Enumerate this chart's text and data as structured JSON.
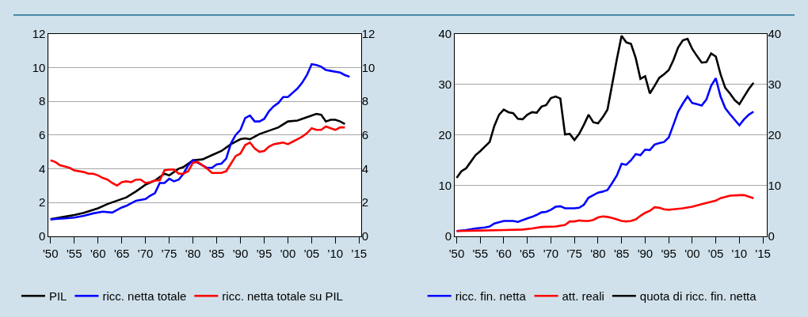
{
  "chart_data": [
    {
      "type": "line",
      "xlim": [
        1949.6,
        2015.4
      ],
      "xticks": [
        {
          "value": 1950,
          "label": "'50"
        },
        {
          "value": 1955,
          "label": "'55"
        },
        {
          "value": 1960,
          "label": "'60"
        },
        {
          "value": 1965,
          "label": "'65"
        },
        {
          "value": 1970,
          "label": "'70"
        },
        {
          "value": 1975,
          "label": "'75"
        },
        {
          "value": 1980,
          "label": "'80"
        },
        {
          "value": 1985,
          "label": "'85"
        },
        {
          "value": 1990,
          "label": "'90"
        },
        {
          "value": 1995,
          "label": "'95"
        },
        {
          "value": 2000,
          "label": "'00"
        },
        {
          "value": 2005,
          "label": "'05"
        },
        {
          "value": 2010,
          "label": "'10"
        },
        {
          "value": 2015,
          "label": "'15"
        }
      ],
      "ylim": [
        0,
        12
      ],
      "yticks": [
        0,
        2,
        4,
        6,
        8,
        10,
        12
      ],
      "y2lim": [
        0,
        12
      ],
      "y2ticks": [
        0,
        2,
        4,
        6,
        8,
        10,
        12
      ],
      "grid": "y",
      "legend": "bottom",
      "series": [
        {
          "name": "PIL",
          "color": "#000000",
          "x": [
            1950,
            1953,
            1955,
            1957,
            1960,
            1962,
            1964,
            1966,
            1968,
            1970,
            1972,
            1974,
            1975,
            1977,
            1978,
            1980,
            1982,
            1984,
            1986,
            1988,
            1990,
            1991,
            1992,
            1994,
            1996,
            1998,
            2000,
            2002,
            2004,
            2006,
            2007,
            2008,
            2009,
            2010,
            2011,
            2012
          ],
          "values": [
            1.0,
            1.15,
            1.25,
            1.38,
            1.65,
            1.9,
            2.1,
            2.3,
            2.65,
            3.05,
            3.3,
            3.7,
            3.6,
            4.0,
            4.1,
            4.5,
            4.55,
            4.8,
            5.05,
            5.45,
            5.75,
            5.8,
            5.75,
            6.05,
            6.25,
            6.45,
            6.8,
            6.85,
            7.05,
            7.25,
            7.2,
            6.8,
            6.9,
            6.9,
            6.8,
            6.65
          ]
        },
        {
          "name": "ricc. netta totale",
          "color": "#0000ff",
          "x": [
            1950,
            1953,
            1955,
            1957,
            1959,
            1961,
            1963,
            1965,
            1966,
            1968,
            1970,
            1971,
            1972,
            1973,
            1974,
            1975,
            1976,
            1977,
            1978,
            1979,
            1980,
            1981,
            1982,
            1983,
            1984,
            1985,
            1986,
            1987,
            1988,
            1989,
            1990,
            1991,
            1992,
            1993,
            1994,
            1995,
            1996,
            1997,
            1998,
            1999,
            2000,
            2001,
            2002,
            2003,
            2004,
            2005,
            2006,
            2007,
            2008,
            2009,
            2010,
            2011,
            2012,
            2013
          ],
          "values": [
            1.0,
            1.05,
            1.1,
            1.2,
            1.35,
            1.45,
            1.4,
            1.7,
            1.8,
            2.1,
            2.2,
            2.4,
            2.55,
            3.15,
            3.15,
            3.4,
            3.25,
            3.35,
            3.7,
            4.2,
            4.5,
            4.35,
            4.2,
            4.05,
            4.05,
            4.25,
            4.3,
            4.6,
            5.5,
            6.0,
            6.3,
            7.0,
            7.15,
            6.8,
            6.8,
            6.95,
            7.4,
            7.7,
            7.9,
            8.25,
            8.25,
            8.5,
            8.75,
            9.1,
            9.55,
            10.2,
            10.15,
            10.05,
            9.85,
            9.8,
            9.75,
            9.7,
            9.55,
            9.45
          ]
        },
        {
          "name": "ricc. netta totale su PIL",
          "color": "#ff0000",
          "x": [
            1950,
            1951,
            1952,
            1954,
            1955,
            1957,
            1958,
            1959,
            1960,
            1961,
            1962,
            1963,
            1964,
            1965,
            1966,
            1967,
            1968,
            1969,
            1970,
            1971,
            1972,
            1973,
            1974,
            1975,
            1976,
            1977,
            1978,
            1979,
            1980,
            1981,
            1982,
            1983,
            1984,
            1985,
            1986,
            1987,
            1988,
            1989,
            1990,
            1991,
            1992,
            1993,
            1994,
            1995,
            1996,
            1997,
            1998,
            1999,
            2000,
            2001,
            2002,
            2003,
            2004,
            2005,
            2006,
            2007,
            2008,
            2009,
            2010,
            2011,
            2012
          ],
          "values": [
            4.5,
            4.4,
            4.2,
            4.05,
            3.9,
            3.8,
            3.7,
            3.7,
            3.6,
            3.45,
            3.35,
            3.15,
            3.0,
            3.2,
            3.25,
            3.2,
            3.35,
            3.35,
            3.15,
            3.2,
            3.3,
            3.3,
            3.9,
            3.95,
            3.95,
            3.7,
            3.7,
            3.85,
            4.35,
            4.4,
            4.2,
            4.0,
            3.75,
            3.75,
            3.75,
            3.85,
            4.3,
            4.75,
            4.9,
            5.4,
            5.55,
            5.2,
            5.0,
            5.05,
            5.3,
            5.45,
            5.5,
            5.55,
            5.45,
            5.6,
            5.75,
            5.9,
            6.1,
            6.4,
            6.3,
            6.3,
            6.5,
            6.4,
            6.3,
            6.45,
            6.45
          ]
        }
      ]
    },
    {
      "type": "line",
      "xlim": [
        1949.6,
        2015.9
      ],
      "xticks": [
        {
          "value": 1950,
          "label": "'50"
        },
        {
          "value": 1955,
          "label": "'55"
        },
        {
          "value": 1960,
          "label": "'60"
        },
        {
          "value": 1965,
          "label": "'65"
        },
        {
          "value": 1970,
          "label": "'70"
        },
        {
          "value": 1975,
          "label": "'75"
        },
        {
          "value": 1980,
          "label": "'80"
        },
        {
          "value": 1985,
          "label": "'85"
        },
        {
          "value": 1990,
          "label": "'90"
        },
        {
          "value": 1995,
          "label": "'95"
        },
        {
          "value": 2000,
          "label": "'00"
        },
        {
          "value": 2005,
          "label": "'05"
        },
        {
          "value": 2010,
          "label": "'10"
        },
        {
          "value": 2015,
          "label": "'15"
        }
      ],
      "ylim": [
        0,
        40
      ],
      "yticks": [
        0,
        10,
        20,
        30,
        40
      ],
      "y2lim": [
        0,
        40
      ],
      "y2ticks": [
        0,
        10,
        20,
        30,
        40
      ],
      "grid": "y",
      "legend": "bottom",
      "series": [
        {
          "name": "ricc. fin. netta",
          "color": "#0000ff",
          "x": [
            1950,
            1952,
            1954,
            1956,
            1957,
            1958,
            1960,
            1962,
            1963,
            1965,
            1966,
            1967,
            1968,
            1969,
            1970,
            1971,
            1972,
            1973,
            1975,
            1976,
            1977,
            1978,
            1979,
            1980,
            1981,
            1982,
            1983,
            1984,
            1985,
            1986,
            1987,
            1988,
            1989,
            1990,
            1991,
            1992,
            1993,
            1994,
            1995,
            1996,
            1997,
            1998,
            1999,
            2000,
            2001,
            2002,
            2003,
            2004,
            2005,
            2006,
            2007,
            2008,
            2009,
            2010,
            2011,
            2012,
            2013
          ],
          "values": [
            1.0,
            1.2,
            1.5,
            1.7,
            1.9,
            2.5,
            3.0,
            3.0,
            2.8,
            3.5,
            3.8,
            4.2,
            4.7,
            4.8,
            5.2,
            5.8,
            5.9,
            5.5,
            5.5,
            5.6,
            6.2,
            7.6,
            8.1,
            8.6,
            8.8,
            9.1,
            10.5,
            12.0,
            14.3,
            14.1,
            15.0,
            16.2,
            16.0,
            17.1,
            17.0,
            18.1,
            18.4,
            18.6,
            19.5,
            22.0,
            24.6,
            26.2,
            27.6,
            26.3,
            26.1,
            25.8,
            27.0,
            29.7,
            31.2,
            27.6,
            25.3,
            24.1,
            23.0,
            21.9,
            23.1,
            24.0,
            24.6
          ]
        },
        {
          "name": "att. reali",
          "color": "#ff0000",
          "x": [
            1950,
            1955,
            1960,
            1964,
            1966,
            1968,
            1971,
            1973,
            1974,
            1975,
            1976,
            1977,
            1978,
            1979,
            1980,
            1981,
            1982,
            1983,
            1984,
            1985,
            1986,
            1987,
            1988,
            1989,
            1990,
            1991,
            1992,
            1993,
            1994,
            1995,
            1996,
            1998,
            2000,
            2002,
            2004,
            2005,
            2006,
            2008,
            2010,
            2011,
            2012,
            2013
          ],
          "values": [
            1.0,
            1.1,
            1.2,
            1.3,
            1.5,
            1.8,
            1.9,
            2.2,
            2.9,
            2.9,
            3.1,
            3.0,
            3.0,
            3.2,
            3.7,
            3.9,
            3.8,
            3.6,
            3.3,
            3.0,
            2.9,
            3.0,
            3.3,
            4.0,
            4.6,
            5.0,
            5.7,
            5.6,
            5.3,
            5.2,
            5.3,
            5.5,
            5.8,
            6.3,
            6.8,
            7.0,
            7.5,
            8.0,
            8.1,
            8.1,
            7.8,
            7.5
          ]
        },
        {
          "name": "quota di ricc. fin. netta",
          "color": "#000000",
          "x": [
            1950,
            1951,
            1952,
            1953,
            1954,
            1955,
            1956,
            1957,
            1958,
            1959,
            1960,
            1961,
            1962,
            1963,
            1964,
            1965,
            1966,
            1967,
            1968,
            1969,
            1970,
            1971,
            1972,
            1973,
            1974,
            1975,
            1976,
            1977,
            1978,
            1979,
            1980,
            1981,
            1982,
            1983,
            1984,
            1985,
            1986,
            1987,
            1988,
            1989,
            1990,
            1991,
            1992,
            1993,
            1994,
            1995,
            1996,
            1997,
            1998,
            1999,
            2000,
            2001,
            2002,
            2003,
            2004,
            2005,
            2006,
            2007,
            2008,
            2009,
            2010,
            2011,
            2012,
            2013
          ],
          "values": [
            11.5,
            12.8,
            13.4,
            14.7,
            16.0,
            16.8,
            17.7,
            18.6,
            21.8,
            24.0,
            25.0,
            24.5,
            24.3,
            23.2,
            23.1,
            24.0,
            24.5,
            24.4,
            25.6,
            25.9,
            27.3,
            27.6,
            27.2,
            20.1,
            20.2,
            19.0,
            20.2,
            22.0,
            24.0,
            22.5,
            22.3,
            23.5,
            25.0,
            30.0,
            35.0,
            39.6,
            38.3,
            38.0,
            35.2,
            31.1,
            31.6,
            28.2,
            29.7,
            31.3,
            32.0,
            32.8,
            34.8,
            37.3,
            38.7,
            39.0,
            37.0,
            35.6,
            34.3,
            34.4,
            36.1,
            35.5,
            32.0,
            29.3,
            28.2,
            26.9,
            26.1,
            27.6,
            29.1,
            30.3
          ]
        }
      ]
    }
  ]
}
